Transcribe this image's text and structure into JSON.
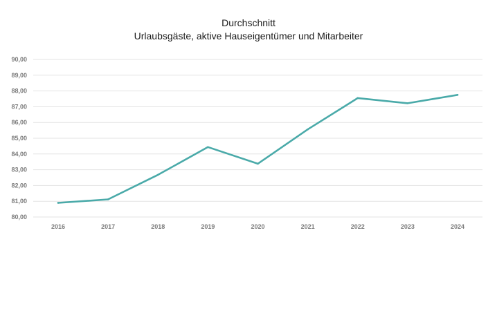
{
  "chart_data": {
    "type": "line",
    "title": "Durchschnitt",
    "subtitle": "Urlaubsgäste, aktive Hauseigentümer und Mitarbeiter",
    "xlabel": "",
    "ylabel": "",
    "categories": [
      "2016",
      "2017",
      "2018",
      "2019",
      "2020",
      "2021",
      "2022",
      "2023",
      "2024"
    ],
    "series": [
      {
        "values": [
          80.9,
          81.12,
          82.68,
          84.44,
          83.38,
          85.56,
          87.55,
          87.22,
          87.75
        ],
        "color": "#4aaaa9"
      }
    ],
    "ylim": [
      80,
      90
    ],
    "y_ticks": [
      80,
      81,
      82,
      83,
      84,
      85,
      86,
      87,
      88,
      89,
      90
    ],
    "y_tick_labels": [
      "80,00",
      "81,00",
      "82,00",
      "83,00",
      "84,00",
      "85,00",
      "86,00",
      "87,00",
      "88,00",
      "89,00",
      "90,00"
    ],
    "grid": true,
    "legend": "none"
  }
}
